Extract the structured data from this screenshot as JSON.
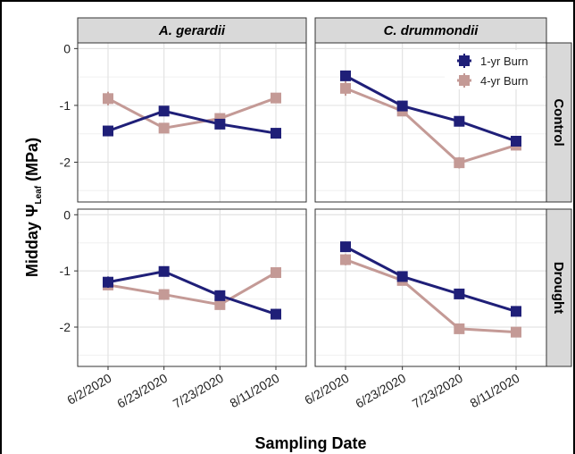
{
  "chart_data": {
    "type": "line",
    "xlabel": "Sampling Date",
    "ylabel": "Midday Ψ",
    "ylabel_sub": "Leaf",
    "ylabel_unit": " (MPa)",
    "categories": [
      "6/2/2020",
      "6/23/2020",
      "7/23/2020",
      "8/11/2020"
    ],
    "ylim": [
      -2.7,
      0.1
    ],
    "yticks": [
      0,
      -1,
      -2
    ],
    "ytick_labels": [
      "0",
      "-1",
      "-2"
    ],
    "columns": [
      "A. gerardii",
      "C. drummondii"
    ],
    "rows": [
      "Control",
      "Drought"
    ],
    "legend": {
      "position": "top-right",
      "entries": [
        "1-yr Burn",
        "4-yr Burn"
      ]
    },
    "colors": {
      "1-yr Burn": "#1f1f78",
      "4-yr Burn": "#c49a96"
    },
    "grid": true,
    "panels": [
      {
        "column": "A. gerardii",
        "row": "Control",
        "series": [
          {
            "name": "1-yr Burn",
            "values": [
              -1.45,
              -1.1,
              -1.33,
              -1.49
            ],
            "err": [
              0.06,
              0.06,
              0.07,
              0.05
            ]
          },
          {
            "name": "4-yr Burn",
            "values": [
              -0.88,
              -1.4,
              -1.23,
              -0.87
            ],
            "err": [
              0.12,
              0.07,
              0.06,
              0.07
            ]
          }
        ]
      },
      {
        "column": "C. drummondii",
        "row": "Control",
        "series": [
          {
            "name": "1-yr Burn",
            "values": [
              -0.48,
              -1.01,
              -1.28,
              -1.63
            ],
            "err": [
              0.08,
              0.06,
              0.06,
              0.06
            ]
          },
          {
            "name": "4-yr Burn",
            "values": [
              -0.7,
              -1.1,
              -2.01,
              -1.7
            ],
            "err": [
              0.13,
              0.09,
              0.1,
              0.08
            ]
          }
        ]
      },
      {
        "column": "A. gerardii",
        "row": "Drought",
        "series": [
          {
            "name": "1-yr Burn",
            "values": [
              -1.2,
              -1.01,
              -1.44,
              -1.77
            ],
            "err": [
              0.1,
              0.08,
              0.06,
              0.05
            ]
          },
          {
            "name": "4-yr Burn",
            "values": [
              -1.25,
              -1.42,
              -1.6,
              -1.03
            ],
            "err": [
              0.07,
              0.06,
              0.07,
              0.06
            ]
          }
        ]
      },
      {
        "column": "C. drummondii",
        "row": "Drought",
        "series": [
          {
            "name": "1-yr Burn",
            "values": [
              -0.57,
              -1.1,
              -1.41,
              -1.72
            ],
            "err": [
              0.07,
              0.06,
              0.06,
              0.05
            ]
          },
          {
            "name": "4-yr Burn",
            "values": [
              -0.8,
              -1.17,
              -2.03,
              -2.09
            ],
            "err": [
              0.1,
              0.08,
              0.06,
              0.06
            ]
          }
        ]
      }
    ]
  }
}
